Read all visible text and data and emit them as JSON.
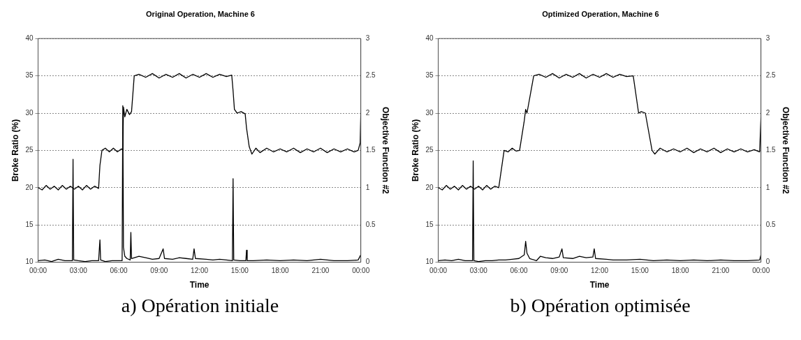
{
  "chart_data": [
    {
      "type": "line",
      "title": "Original Operation, Machine 6",
      "xlabel": "Time",
      "ylabel": "Broke Ratio (%)",
      "y2label": "Objective Function #2",
      "annotations": [
        "a) Opération initiale"
      ],
      "xlim": [
        0,
        24
      ],
      "xticks": [
        {
          "value": 0,
          "label": "00:00"
        },
        {
          "value": 3,
          "label": "03:00"
        },
        {
          "value": 6,
          "label": "06:00"
        },
        {
          "value": 9,
          "label": "09:00"
        },
        {
          "value": 12,
          "label": "12:00"
        },
        {
          "value": 15,
          "label": "15:00"
        },
        {
          "value": 18,
          "label": "18:00"
        },
        {
          "value": 21,
          "label": "21:00"
        },
        {
          "value": 24,
          "label": "00:00"
        }
      ],
      "ylim": [
        10,
        40
      ],
      "yticks": [
        10,
        15,
        20,
        25,
        30,
        35,
        40
      ],
      "y2lim": [
        0,
        3
      ],
      "y2ticks": [
        0,
        0.5,
        1,
        1.5,
        2,
        2.5,
        3
      ],
      "grid": "y",
      "legend": false,
      "marker": "none",
      "line_style": "solid",
      "series": [
        {
          "color": "#000000",
          "x": [
            0,
            0.3,
            0.6,
            0.9,
            1.2,
            1.5,
            1.8,
            2.1,
            2.4,
            2.7,
            3.0,
            3.3,
            3.6,
            3.9,
            4.2,
            4.5,
            4.6,
            4.75,
            5.0,
            5.3,
            5.6,
            5.9,
            6.2,
            6.3,
            6.35,
            6.45,
            6.6,
            6.8,
            6.95,
            7.15,
            7.5,
            8,
            8.5,
            9,
            9.5,
            10,
            10.5,
            11,
            11.5,
            12,
            12.5,
            13,
            13.5,
            14,
            14.4,
            14.5,
            14.6,
            14.8,
            15.1,
            15.4,
            15.5,
            15.7,
            15.9,
            16.2,
            16.5,
            17,
            17.5,
            18,
            18.5,
            19,
            19.5,
            20,
            20.5,
            21,
            21.5,
            22,
            22.5,
            23,
            23.5,
            23.8,
            23.95,
            24
          ],
          "values": [
            20,
            19.7,
            20.3,
            19.8,
            20.2,
            19.7,
            20.3,
            19.8,
            20.2,
            19.8,
            20.2,
            19.7,
            20.3,
            19.8,
            20.2,
            19.9,
            23,
            25,
            25.3,
            24.8,
            25.3,
            24.8,
            25.2,
            25,
            30.8,
            29.5,
            30.5,
            29.8,
            30.2,
            35,
            35.2,
            34.8,
            35.3,
            34.7,
            35.2,
            34.8,
            35.3,
            34.7,
            35.2,
            34.8,
            35.3,
            34.8,
            35.2,
            34.9,
            35.1,
            33,
            30.5,
            30,
            30.2,
            29.9,
            28,
            25.5,
            24.5,
            25.3,
            24.7,
            25.3,
            24.8,
            25.2,
            24.8,
            25.3,
            24.7,
            25.2,
            24.8,
            25.3,
            24.7,
            25.2,
            24.8,
            25.2,
            24.8,
            25,
            26,
            30
          ]
        },
        {
          "color": "#000000",
          "axis": "y2",
          "x": [
            0,
            0.5,
            1,
            1.5,
            2,
            2.55,
            2.6,
            2.65,
            3,
            3.5,
            4,
            4.5,
            4.6,
            4.65,
            5,
            5.5,
            6,
            6.25,
            6.3,
            6.35,
            6.45,
            6.6,
            6.85,
            6.9,
            6.95,
            7.5,
            8,
            8.5,
            9,
            9.3,
            9.4,
            10,
            10.5,
            11,
            11.5,
            11.6,
            11.7,
            12.5,
            13,
            13.5,
            14,
            14.45,
            14.5,
            14.55,
            15,
            15.45,
            15.5,
            15.55,
            16,
            17,
            18,
            19,
            20,
            21,
            22,
            23,
            23.8,
            24
          ],
          "values": [
            0.02,
            0.03,
            0.01,
            0.04,
            0.02,
            0.02,
            1.38,
            0.03,
            0.02,
            0.01,
            0.02,
            0.02,
            0.3,
            0.03,
            0.01,
            0.02,
            0.02,
            0.02,
            2.1,
            0.2,
            0.08,
            0.05,
            0.03,
            0.4,
            0.05,
            0.08,
            0.06,
            0.04,
            0.05,
            0.18,
            0.05,
            0.04,
            0.06,
            0.05,
            0.04,
            0.18,
            0.05,
            0.04,
            0.03,
            0.04,
            0.03,
            0.02,
            1.12,
            0.03,
            0.02,
            0.02,
            0.16,
            0.02,
            0.02,
            0.03,
            0.02,
            0.03,
            0.02,
            0.04,
            0.02,
            0.02,
            0.03,
            0.1
          ]
        }
      ]
    },
    {
      "type": "line",
      "title": "Optimized Operation, Machine 6",
      "xlabel": "Time",
      "ylabel": "Broke Ratio (%)",
      "y2label": "Objective Function #2",
      "annotations": [
        "b) Opération optimisée"
      ],
      "xlim": [
        0,
        24
      ],
      "xticks": [
        {
          "value": 0,
          "label": "00:00"
        },
        {
          "value": 3,
          "label": "03:00"
        },
        {
          "value": 6,
          "label": "06:00"
        },
        {
          "value": 9,
          "label": "09:00"
        },
        {
          "value": 12,
          "label": "12:00"
        },
        {
          "value": 15,
          "label": "15:00"
        },
        {
          "value": 18,
          "label": "18:00"
        },
        {
          "value": 21,
          "label": "21:00"
        },
        {
          "value": 24,
          "label": "00:00"
        }
      ],
      "ylim": [
        10,
        40
      ],
      "yticks": [
        10,
        15,
        20,
        25,
        30,
        35,
        40
      ],
      "y2lim": [
        0,
        3
      ],
      "y2ticks": [
        0,
        0.5,
        1,
        1.5,
        2,
        2.5,
        3
      ],
      "grid": "y",
      "legend": false,
      "marker": "none",
      "line_style": "solid",
      "series": [
        {
          "color": "#000000",
          "x": [
            0,
            0.3,
            0.6,
            0.9,
            1.2,
            1.5,
            1.8,
            2.1,
            2.4,
            2.7,
            3.0,
            3.3,
            3.6,
            3.9,
            4.2,
            4.5,
            4.9,
            5.2,
            5.5,
            5.8,
            6.05,
            6.4,
            6.5,
            6.6,
            7.1,
            7.5,
            8,
            8.5,
            9,
            9.5,
            10,
            10.5,
            11,
            11.5,
            12,
            12.5,
            13,
            13.5,
            14,
            14.5,
            14.9,
            15.1,
            15.4,
            15.9,
            16.1,
            16.5,
            17,
            17.5,
            18,
            18.5,
            19,
            19.5,
            20,
            20.5,
            21,
            21.5,
            22,
            22.5,
            23,
            23.5,
            23.9,
            24
          ],
          "values": [
            20,
            19.7,
            20.3,
            19.8,
            20.2,
            19.7,
            20.3,
            19.8,
            20.2,
            19.8,
            20.2,
            19.7,
            20.3,
            19.8,
            20.2,
            20,
            25,
            24.8,
            25.3,
            24.9,
            25,
            29,
            30.5,
            30,
            35,
            35.2,
            34.8,
            35.3,
            34.7,
            35.2,
            34.8,
            35.3,
            34.7,
            35.2,
            34.8,
            35.3,
            34.8,
            35.2,
            34.9,
            35,
            30,
            30.2,
            30,
            25,
            24.5,
            25.3,
            24.8,
            25.2,
            24.8,
            25.3,
            24.7,
            25.2,
            24.8,
            25.3,
            24.7,
            25.2,
            24.8,
            25.2,
            24.8,
            25.1,
            24.8,
            29.5
          ]
        },
        {
          "color": "#000000",
          "axis": "y2",
          "x": [
            0,
            0.5,
            1,
            1.5,
            2,
            2.55,
            2.6,
            2.65,
            3,
            3.5,
            4,
            4.5,
            5,
            5.5,
            6,
            6.4,
            6.5,
            6.6,
            6.8,
            7.3,
            7.6,
            8,
            8.5,
            9,
            9.2,
            9.3,
            10,
            10.5,
            11,
            11.5,
            11.6,
            11.7,
            12.5,
            13,
            14,
            15,
            16,
            17,
            18,
            19,
            20,
            21,
            22,
            23,
            23.9,
            24
          ],
          "values": [
            0.02,
            0.03,
            0.02,
            0.04,
            0.02,
            0.02,
            1.36,
            0.02,
            0.01,
            0.02,
            0.02,
            0.03,
            0.03,
            0.04,
            0.05,
            0.1,
            0.28,
            0.12,
            0.05,
            0.02,
            0.08,
            0.06,
            0.05,
            0.07,
            0.18,
            0.06,
            0.05,
            0.08,
            0.06,
            0.07,
            0.18,
            0.05,
            0.04,
            0.03,
            0.03,
            0.04,
            0.02,
            0.03,
            0.02,
            0.03,
            0.02,
            0.03,
            0.02,
            0.02,
            0.03,
            0.1
          ]
        }
      ]
    }
  ]
}
